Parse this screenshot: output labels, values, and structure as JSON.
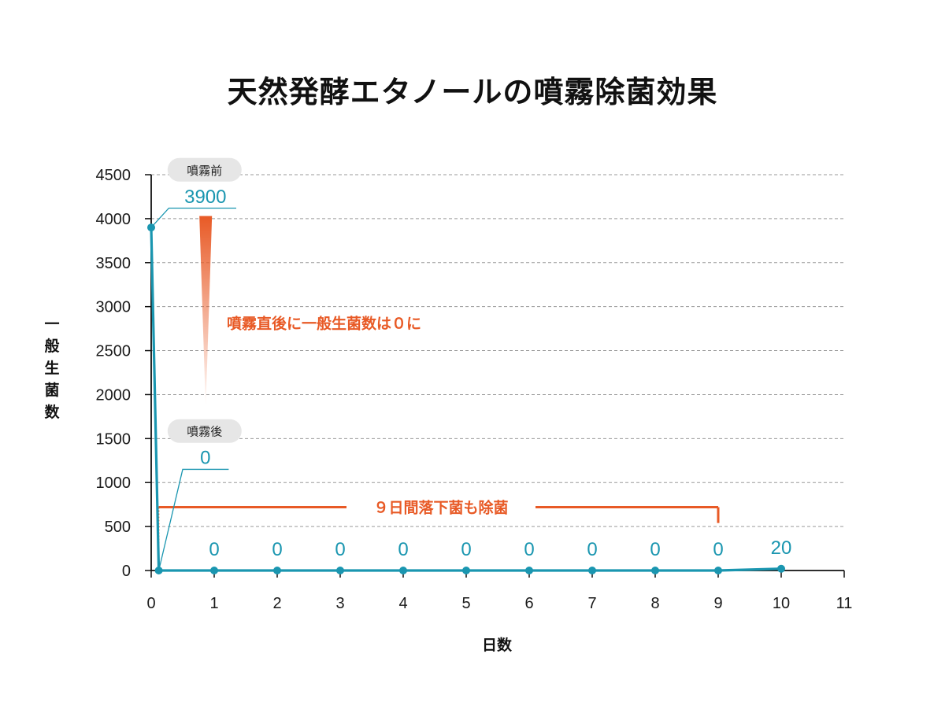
{
  "chart_data": {
    "type": "line",
    "title": "天然発酵エタノールの噴霧除菌効果",
    "xlabel": "日数",
    "ylabel": "一般生菌数",
    "xlim": [
      0,
      11
    ],
    "ylim": [
      0,
      4500
    ],
    "x_ticks": [
      "0",
      "1",
      "2",
      "3",
      "4",
      "5",
      "6",
      "7",
      "8",
      "9",
      "10",
      "11"
    ],
    "y_ticks": [
      "0",
      "500",
      "1000",
      "1500",
      "2000",
      "2500",
      "3000",
      "3500",
      "4000",
      "4500"
    ],
    "grid": "horizontal dashed",
    "series": [
      {
        "color": "#1a96b0",
        "x": [
          0,
          0.12,
          1,
          2,
          3,
          4,
          5,
          6,
          7,
          8,
          9,
          10
        ],
        "y": [
          3900,
          0,
          0,
          0,
          0,
          0,
          0,
          0,
          0,
          0,
          0,
          20
        ]
      }
    ],
    "data_labels": [
      "0",
      "0",
      "0",
      "0",
      "0",
      "0",
      "0",
      "0",
      "0",
      "20"
    ],
    "annotations": {
      "before_tag": "噴霧前",
      "before_value": "3900",
      "after_tag": "噴霧後",
      "after_value": "0",
      "drop_note": "噴霧直後に一般生菌数は０に",
      "range_note": "９日間落下菌も除菌"
    },
    "colors": {
      "line": "#1a96b0",
      "accent": "#e85a26",
      "grid": "#9a9a9a",
      "tag_bg": "#e6e6e6"
    }
  }
}
